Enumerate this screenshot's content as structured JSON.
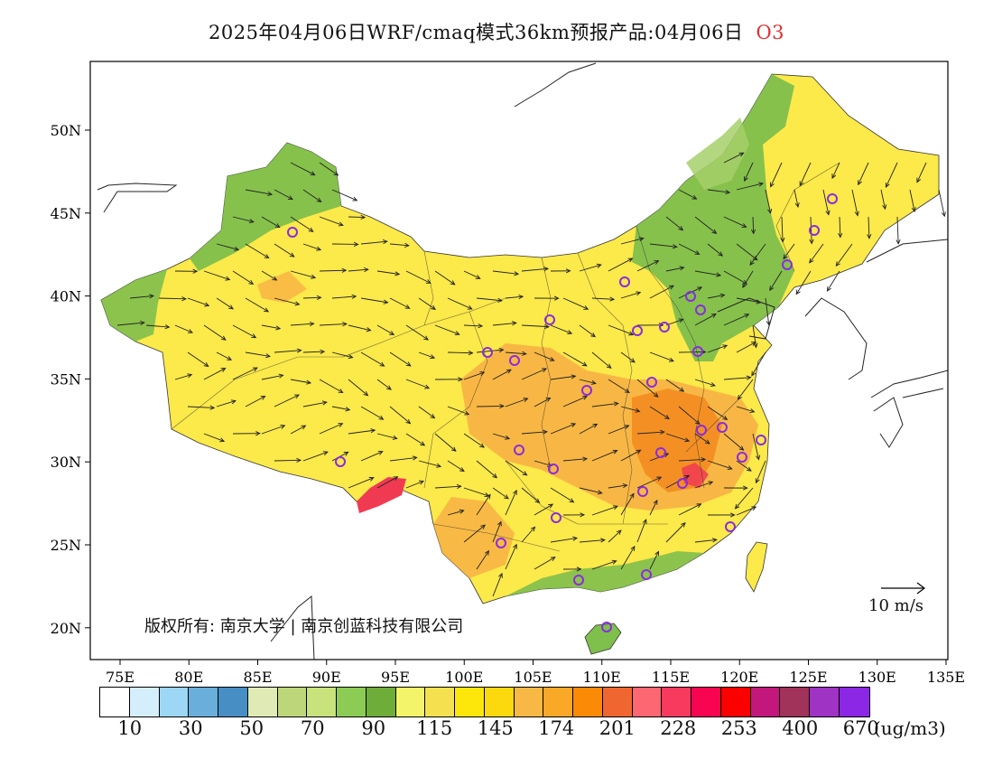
{
  "title": {
    "main": "2025年04月06日WRF/cmaq模式36km预报产品:04月06日",
    "species": "O3",
    "species_color": "#e03030"
  },
  "axes": {
    "x_ticks": [
      "75E",
      "80E",
      "85E",
      "90E",
      "95E",
      "100E",
      "105E",
      "110E",
      "115E",
      "120E",
      "125E",
      "130E",
      "135E"
    ],
    "y_ticks": [
      "50N",
      "45N",
      "40N",
      "35N",
      "30N",
      "25N",
      "20N"
    ]
  },
  "map": {
    "copyright": "版权所有: 南京大学 | 南京创蓝科技有限公司",
    "wind_scale_label": "10 m/s",
    "fill_colors": {
      "background_low": "#7fbf4c",
      "main": "#fce94a",
      "yellow": "#fde212",
      "orange_light": "#f7b144",
      "orange": "#f38a1d",
      "red": "#f03a52",
      "green_dark": "#6aa833",
      "green_light": "#a6cf6a"
    },
    "station_color": "#8a2be2"
  },
  "colorbar": {
    "colors": [
      "#ffffff",
      "#d5eefb",
      "#9dd7f5",
      "#6aaedc",
      "#468ec4",
      "#dfeab5",
      "#bed67a",
      "#c8e27c",
      "#8dcc54",
      "#6fad3b",
      "#f3f469",
      "#f5e14f",
      "#fde70a",
      "#fcd90f",
      "#f8b846",
      "#f9a927",
      "#fb8a07",
      "#f06630",
      "#fd6772",
      "#f73a5e",
      "#f70550",
      "#fc0000",
      "#c3177b",
      "#a13259",
      "#9f33c4",
      "#8b27e5"
    ],
    "labels": [
      "10",
      "30",
      "50",
      "70",
      "90",
      "115",
      "145",
      "174",
      "201",
      "228",
      "253",
      "400",
      "670"
    ],
    "unit": "(ug/m3)"
  }
}
